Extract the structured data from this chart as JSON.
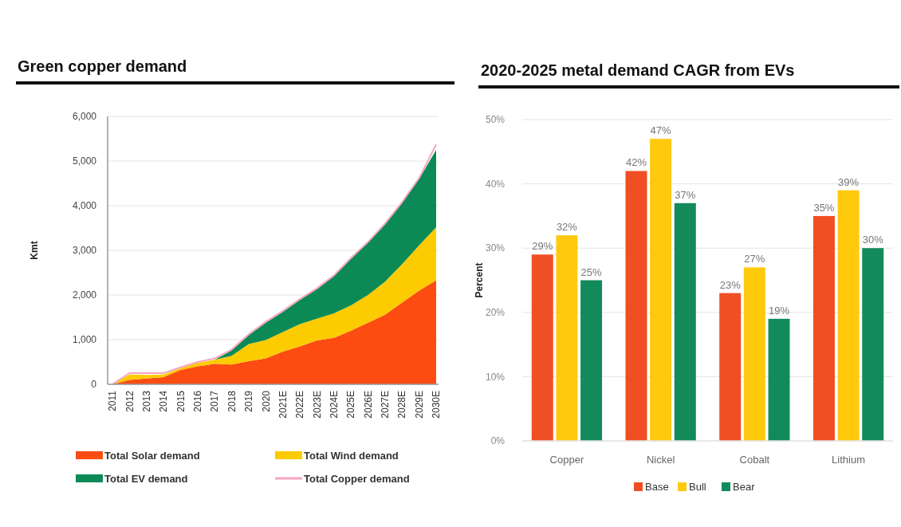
{
  "chart_data": [
    {
      "type": "area",
      "title": "Green copper demand",
      "ylabel": "Kmt",
      "stacked": true,
      "categories": [
        "2011",
        "2012",
        "2013",
        "2014",
        "2015",
        "2016",
        "2017",
        "2018",
        "2019",
        "2020",
        "2021E",
        "2022E",
        "2023E",
        "2024E",
        "2025E",
        "2026E",
        "2027E",
        "2028E",
        "2029E",
        "2030E"
      ],
      "series": [
        {
          "name": "Total Solar demand",
          "color": "#fc4c12",
          "values": [
            0,
            100,
            130,
            160,
            320,
            400,
            460,
            440,
            520,
            580,
            730,
            850,
            980,
            1040,
            1200,
            1380,
            1560,
            1830,
            2100,
            2330
          ]
        },
        {
          "name": "Total Wind demand",
          "color": "#fccb00",
          "values": [
            0,
            120,
            80,
            60,
            40,
            80,
            90,
            200,
            380,
            410,
            440,
            500,
            490,
            550,
            570,
            620,
            740,
            860,
            1010,
            1190
          ]
        },
        {
          "name": "Total EV demand",
          "color": "#0c8a55",
          "values": [
            0,
            0,
            0,
            0,
            0,
            0,
            0,
            120,
            200,
            390,
            450,
            540,
            660,
            830,
            1040,
            1170,
            1280,
            1370,
            1490,
            1730
          ]
        },
        {
          "name": "Total Copper demand",
          "type": "line",
          "color": "#f4a6c0",
          "values": [
            0,
            250,
            250,
            250,
            380,
            500,
            580,
            780,
            1120,
            1400,
            1640,
            1910,
            2150,
            2440,
            2830,
            3190,
            3600,
            4080,
            4620,
            5370
          ]
        }
      ],
      "ylim": [
        0,
        6000
      ],
      "yticks": [
        {
          "value": 0,
          "label": "0"
        },
        {
          "value": 1000,
          "label": "1,000"
        },
        {
          "value": 2000,
          "label": "2,000"
        },
        {
          "value": 3000,
          "label": "3,000"
        },
        {
          "value": 4000,
          "label": "4,000"
        },
        {
          "value": 5000,
          "label": "5,000"
        },
        {
          "value": 6000,
          "label": "6,000"
        }
      ],
      "grid": "y",
      "legend": "bottom"
    },
    {
      "type": "bar",
      "title": "2020-2025 metal demand CAGR from EVs",
      "ylabel": "Percent",
      "categories": [
        "Copper",
        "Nickel",
        "Cobalt",
        "Lithium"
      ],
      "series": [
        {
          "name": "Base",
          "color": "#f04e23",
          "values": [
            29,
            42,
            23,
            35
          ],
          "value_labels": [
            "29%",
            "42%",
            "23%",
            "35%"
          ]
        },
        {
          "name": "Bull",
          "color": "#ffc90e",
          "values": [
            32,
            47,
            27,
            39
          ],
          "value_labels": [
            "32%",
            "47%",
            "27%",
            "39%"
          ]
        },
        {
          "name": "Bear",
          "color": "#138a5a",
          "values": [
            25,
            37,
            19,
            30
          ],
          "value_labels": [
            "25%",
            "37%",
            "19%",
            "30%"
          ]
        }
      ],
      "ylim": [
        0,
        50
      ],
      "yticks": [
        {
          "value": 0,
          "label": "0%"
        },
        {
          "value": 10,
          "label": "10%"
        },
        {
          "value": 20,
          "label": "20%"
        },
        {
          "value": 30,
          "label": "30%"
        },
        {
          "value": 40,
          "label": "40%"
        },
        {
          "value": 50,
          "label": "50%"
        }
      ],
      "grid": "y",
      "legend": "bottom"
    }
  ]
}
